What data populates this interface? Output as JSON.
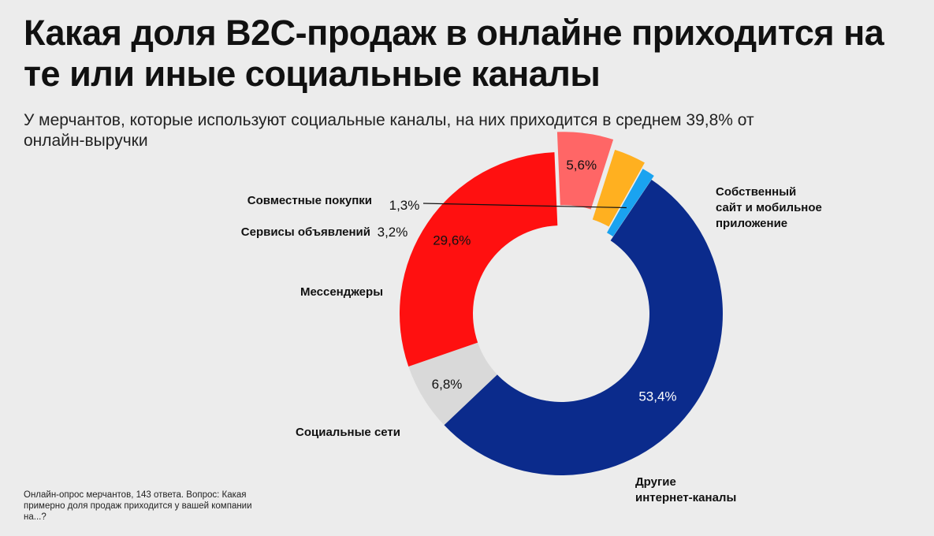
{
  "header": {
    "title": "Какая доля B2C-продаж в онлайне приходится на те или иные социальные каналы",
    "subtitle": "У мерчантов, которые используют социальные каналы, на них приходится в среднем 39,8% от онлайн-выручки"
  },
  "chart_data": {
    "type": "pie",
    "title": "",
    "slices": [
      {
        "label_lines": [
          "Собственный",
          "сайт и мобильное",
          "приложение"
        ],
        "value": 53.4,
        "value_label": "53,4%",
        "color": "#0b2b8c"
      },
      {
        "label_lines": [
          "Другие",
          "интернет-каналы"
        ],
        "value": 6.8,
        "value_label": "6,8%",
        "color": "#d9d9d9"
      },
      {
        "label_lines": [
          "Социальные сети"
        ],
        "value": 29.6,
        "value_label": "29,6%",
        "color": "#ff1010"
      },
      {
        "label_lines": [
          "Мессенджеры"
        ],
        "value": 5.6,
        "value_label": "5,6%",
        "color": "#ff6666"
      },
      {
        "label_lines": [
          "Сервисы объявлений"
        ],
        "value": 3.2,
        "value_label": "3,2%",
        "color": "#ffb020"
      },
      {
        "label_lines": [
          "Совместные покупки"
        ],
        "value": 1.3,
        "value_label": "1,3%",
        "color": "#1aa3f0"
      }
    ]
  },
  "footnote": "Онлайн-опрос мерчантов, 143 ответа. Вопрос: Какая примерно доля продаж приходится у вашей компании на...?"
}
